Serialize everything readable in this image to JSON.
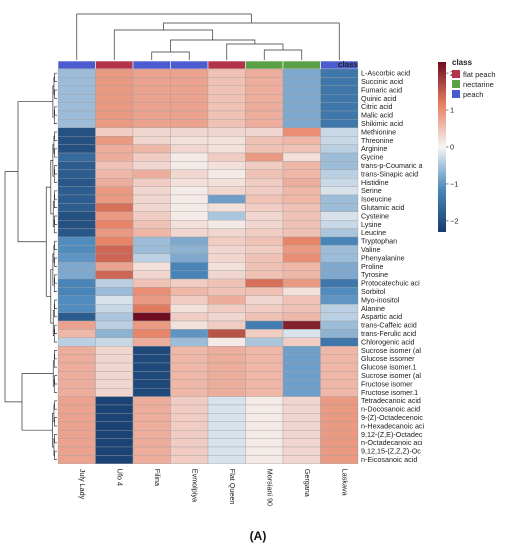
{
  "chart_data": {
    "type": "heatmap",
    "title": "",
    "panel_label": "(A)",
    "samples": [
      "July Lady",
      "Ufo 4",
      "Filina",
      "Evmolpiya",
      "Flat Queen",
      "Morsiani 90",
      "Gergana",
      "Laskava"
    ],
    "sample_class": [
      "peach",
      "flat peach",
      "peach",
      "peach",
      "flat peach",
      "nectarine",
      "nectarine",
      "peach"
    ],
    "class_header": "class",
    "class_colors": {
      "flat peach": "#b5334a",
      "nectarine": "#5aa046",
      "peach": "#4b5bd0"
    },
    "legend": {
      "title": "class",
      "entries": [
        {
          "label": "flat peach",
          "color": "#b5334a"
        },
        {
          "label": "nectarine",
          "color": "#5aa046"
        },
        {
          "label": "peach",
          "color": "#4b5bd0"
        }
      ]
    },
    "colorbar": {
      "range": [
        -2.3,
        2.3
      ],
      "ticks": [
        -2,
        -1,
        0,
        1,
        2
      ],
      "tick_labels": [
        "−2",
        "−1",
        "0",
        "1",
        "2"
      ],
      "colors_low_to_high": [
        "#163c6e",
        "#4a87bb",
        "#f5f5f5",
        "#e77f62",
        "#6e0e20"
      ]
    },
    "metabolites": [
      "L-Ascorbic acid",
      "Succinic acid",
      "Fumaric acid",
      "Quinic acid",
      "Citric acid",
      "Malic acid",
      "Shikimic acid",
      "Methionine",
      "Threonine",
      "Arginine",
      "Gycine",
      "trans-p-Coumaric a",
      "trans-Sinapic acid",
      "Histidine",
      "Serine",
      "Isoeucine",
      "Glutamic acid",
      "Cysteine",
      "Lysine",
      "Leucine",
      "Tryptophan",
      "Valine",
      "Phenyalanine",
      "Proline",
      "Tyrosine",
      "Protocatechuic aci",
      "Sorbitol",
      "Myo-inositol",
      "Alanine",
      "Aspartic acid",
      "trans-Caffeic acid",
      "trans-Ferulic acid",
      "Chlorogenic acid",
      "Sucrose isomer (al",
      "Glucose issomer",
      "Glucose isomer.1",
      "Sucrose isomer (al",
      "Fructose isomer",
      "Fructose isomer.1",
      "Tetradecanoic acid",
      "n-Docosanoic acid",
      "9-(Z)-Octadecenoic",
      "n-Hexadecanoic aci",
      "9,12-(Z,E)-Octadec",
      "n-Octadecanoic aci",
      "9,12,15-(Z,Z,Z)-Oc",
      "n-Eicosanoic acid"
    ],
    "values": [
      [
        -0.6,
        0.9,
        0.8,
        0.8,
        0.5,
        0.7,
        -0.8,
        -1.4
      ],
      [
        -0.6,
        0.9,
        0.8,
        0.8,
        0.5,
        0.7,
        -0.8,
        -1.4
      ],
      [
        -0.6,
        0.9,
        0.8,
        0.8,
        0.5,
        0.7,
        -0.8,
        -1.4
      ],
      [
        -0.6,
        0.9,
        0.8,
        0.8,
        0.5,
        0.7,
        -0.8,
        -1.4
      ],
      [
        -0.6,
        0.9,
        0.8,
        0.8,
        0.5,
        0.7,
        -0.8,
        -1.4
      ],
      [
        -0.6,
        0.9,
        0.8,
        0.8,
        0.5,
        0.7,
        -0.8,
        -1.4
      ],
      [
        -0.6,
        0.9,
        0.8,
        0.8,
        0.5,
        0.7,
        -0.8,
        -1.4
      ],
      [
        -2.0,
        0.4,
        0.3,
        0.3,
        0.3,
        0.3,
        1.0,
        -0.3
      ],
      [
        -2.0,
        0.9,
        0.3,
        0.2,
        0.2,
        0.5,
        0.6,
        -0.3
      ],
      [
        -2.0,
        0.7,
        0.6,
        0.3,
        0.2,
        0.5,
        0.5,
        -0.4
      ],
      [
        -1.6,
        0.7,
        0.4,
        0.1,
        0.4,
        0.9,
        0.2,
        -0.6
      ],
      [
        -1.8,
        0.5,
        0.3,
        0.1,
        0.2,
        0.4,
        0.6,
        -0.6
      ],
      [
        -1.8,
        0.6,
        0.7,
        0.3,
        0.1,
        0.5,
        0.6,
        -0.4
      ],
      [
        -1.9,
        0.7,
        0.4,
        0.2,
        0.2,
        0.4,
        0.7,
        -0.3
      ],
      [
        -1.8,
        0.9,
        0.3,
        0.1,
        0.3,
        0.4,
        0.6,
        -0.2
      ],
      [
        -1.8,
        0.9,
        0.3,
        0.1,
        -0.9,
        0.5,
        0.6,
        -0.6
      ],
      [
        -1.8,
        1.3,
        0.3,
        0.1,
        0.2,
        0.4,
        0.5,
        -0.6
      ],
      [
        -2.0,
        0.9,
        0.4,
        0.1,
        -0.5,
        0.3,
        0.5,
        -0.2
      ],
      [
        -2.0,
        1.1,
        0.5,
        0.2,
        0.1,
        0.3,
        0.5,
        -0.3
      ],
      [
        -1.9,
        0.9,
        0.6,
        0.3,
        0.3,
        0.4,
        0.5,
        -0.5
      ],
      [
        -1.1,
        1.1,
        -0.6,
        -0.8,
        0.4,
        0.5,
        1.1,
        -1.2
      ],
      [
        -1.1,
        1.4,
        -0.6,
        -0.7,
        0.3,
        0.4,
        0.9,
        -0.6
      ],
      [
        -1.0,
        1.4,
        -0.4,
        -0.8,
        0.3,
        0.5,
        1.0,
        -0.6
      ],
      [
        -0.8,
        0.8,
        0.2,
        -1.2,
        0.2,
        0.5,
        0.6,
        -0.8
      ],
      [
        -0.8,
        1.4,
        0.3,
        -1.2,
        0.3,
        0.5,
        0.6,
        -0.8
      ],
      [
        -1.2,
        -0.4,
        0.5,
        0.4,
        0.5,
        1.3,
        0.9,
        -1.4
      ],
      [
        -1.2,
        -0.6,
        1.0,
        0.6,
        0.5,
        0.5,
        0.2,
        -1.1
      ],
      [
        -1.1,
        -0.2,
        0.9,
        0.4,
        0.7,
        0.3,
        0.5,
        -1.0
      ],
      [
        -1.1,
        -0.3,
        1.2,
        0.2,
        0.4,
        0.4,
        0.5,
        -0.4
      ],
      [
        -1.8,
        -0.5,
        2.3,
        0.4,
        0.3,
        0.5,
        0.6,
        -0.4
      ],
      [
        0.8,
        -0.4,
        0.9,
        0.2,
        0.4,
        -1.3,
        2.1,
        -0.6
      ],
      [
        0.6,
        -0.7,
        1.1,
        -1.0,
        1.6,
        0.4,
        -0.2,
        -0.7
      ],
      [
        -0.4,
        -0.3,
        0.7,
        -0.6,
        0.1,
        -0.5,
        0.4,
        -1.4
      ],
      [
        0.7,
        0.3,
        -2.1,
        0.6,
        0.7,
        0.6,
        -0.9,
        0.6
      ],
      [
        0.7,
        0.3,
        -2.1,
        0.6,
        0.7,
        0.6,
        -0.9,
        0.6
      ],
      [
        0.7,
        0.3,
        -2.1,
        0.6,
        0.7,
        0.6,
        -0.9,
        0.6
      ],
      [
        0.7,
        0.3,
        -2.1,
        0.6,
        0.7,
        0.6,
        -0.9,
        0.6
      ],
      [
        0.7,
        0.3,
        -2.1,
        0.6,
        0.7,
        0.6,
        -0.9,
        0.6
      ],
      [
        0.7,
        0.3,
        -2.1,
        0.6,
        0.7,
        0.6,
        -0.9,
        0.6
      ],
      [
        0.8,
        -2.2,
        0.7,
        0.4,
        -0.2,
        0.1,
        0.3,
        0.9
      ],
      [
        0.8,
        -2.2,
        0.7,
        0.4,
        -0.2,
        0.1,
        0.3,
        0.9
      ],
      [
        0.8,
        -2.2,
        0.7,
        0.4,
        -0.2,
        0.1,
        0.3,
        0.9
      ],
      [
        0.8,
        -2.2,
        0.7,
        0.4,
        -0.2,
        0.1,
        0.3,
        0.9
      ],
      [
        0.8,
        -2.2,
        0.7,
        0.4,
        -0.2,
        0.1,
        0.3,
        0.9
      ],
      [
        0.8,
        -2.2,
        0.7,
        0.4,
        -0.2,
        0.1,
        0.3,
        0.9
      ],
      [
        0.8,
        -2.2,
        0.7,
        0.4,
        -0.2,
        0.1,
        0.3,
        0.9
      ],
      [
        0.8,
        -2.2,
        0.7,
        0.4,
        -0.2,
        0.1,
        0.3,
        0.9
      ]
    ]
  }
}
